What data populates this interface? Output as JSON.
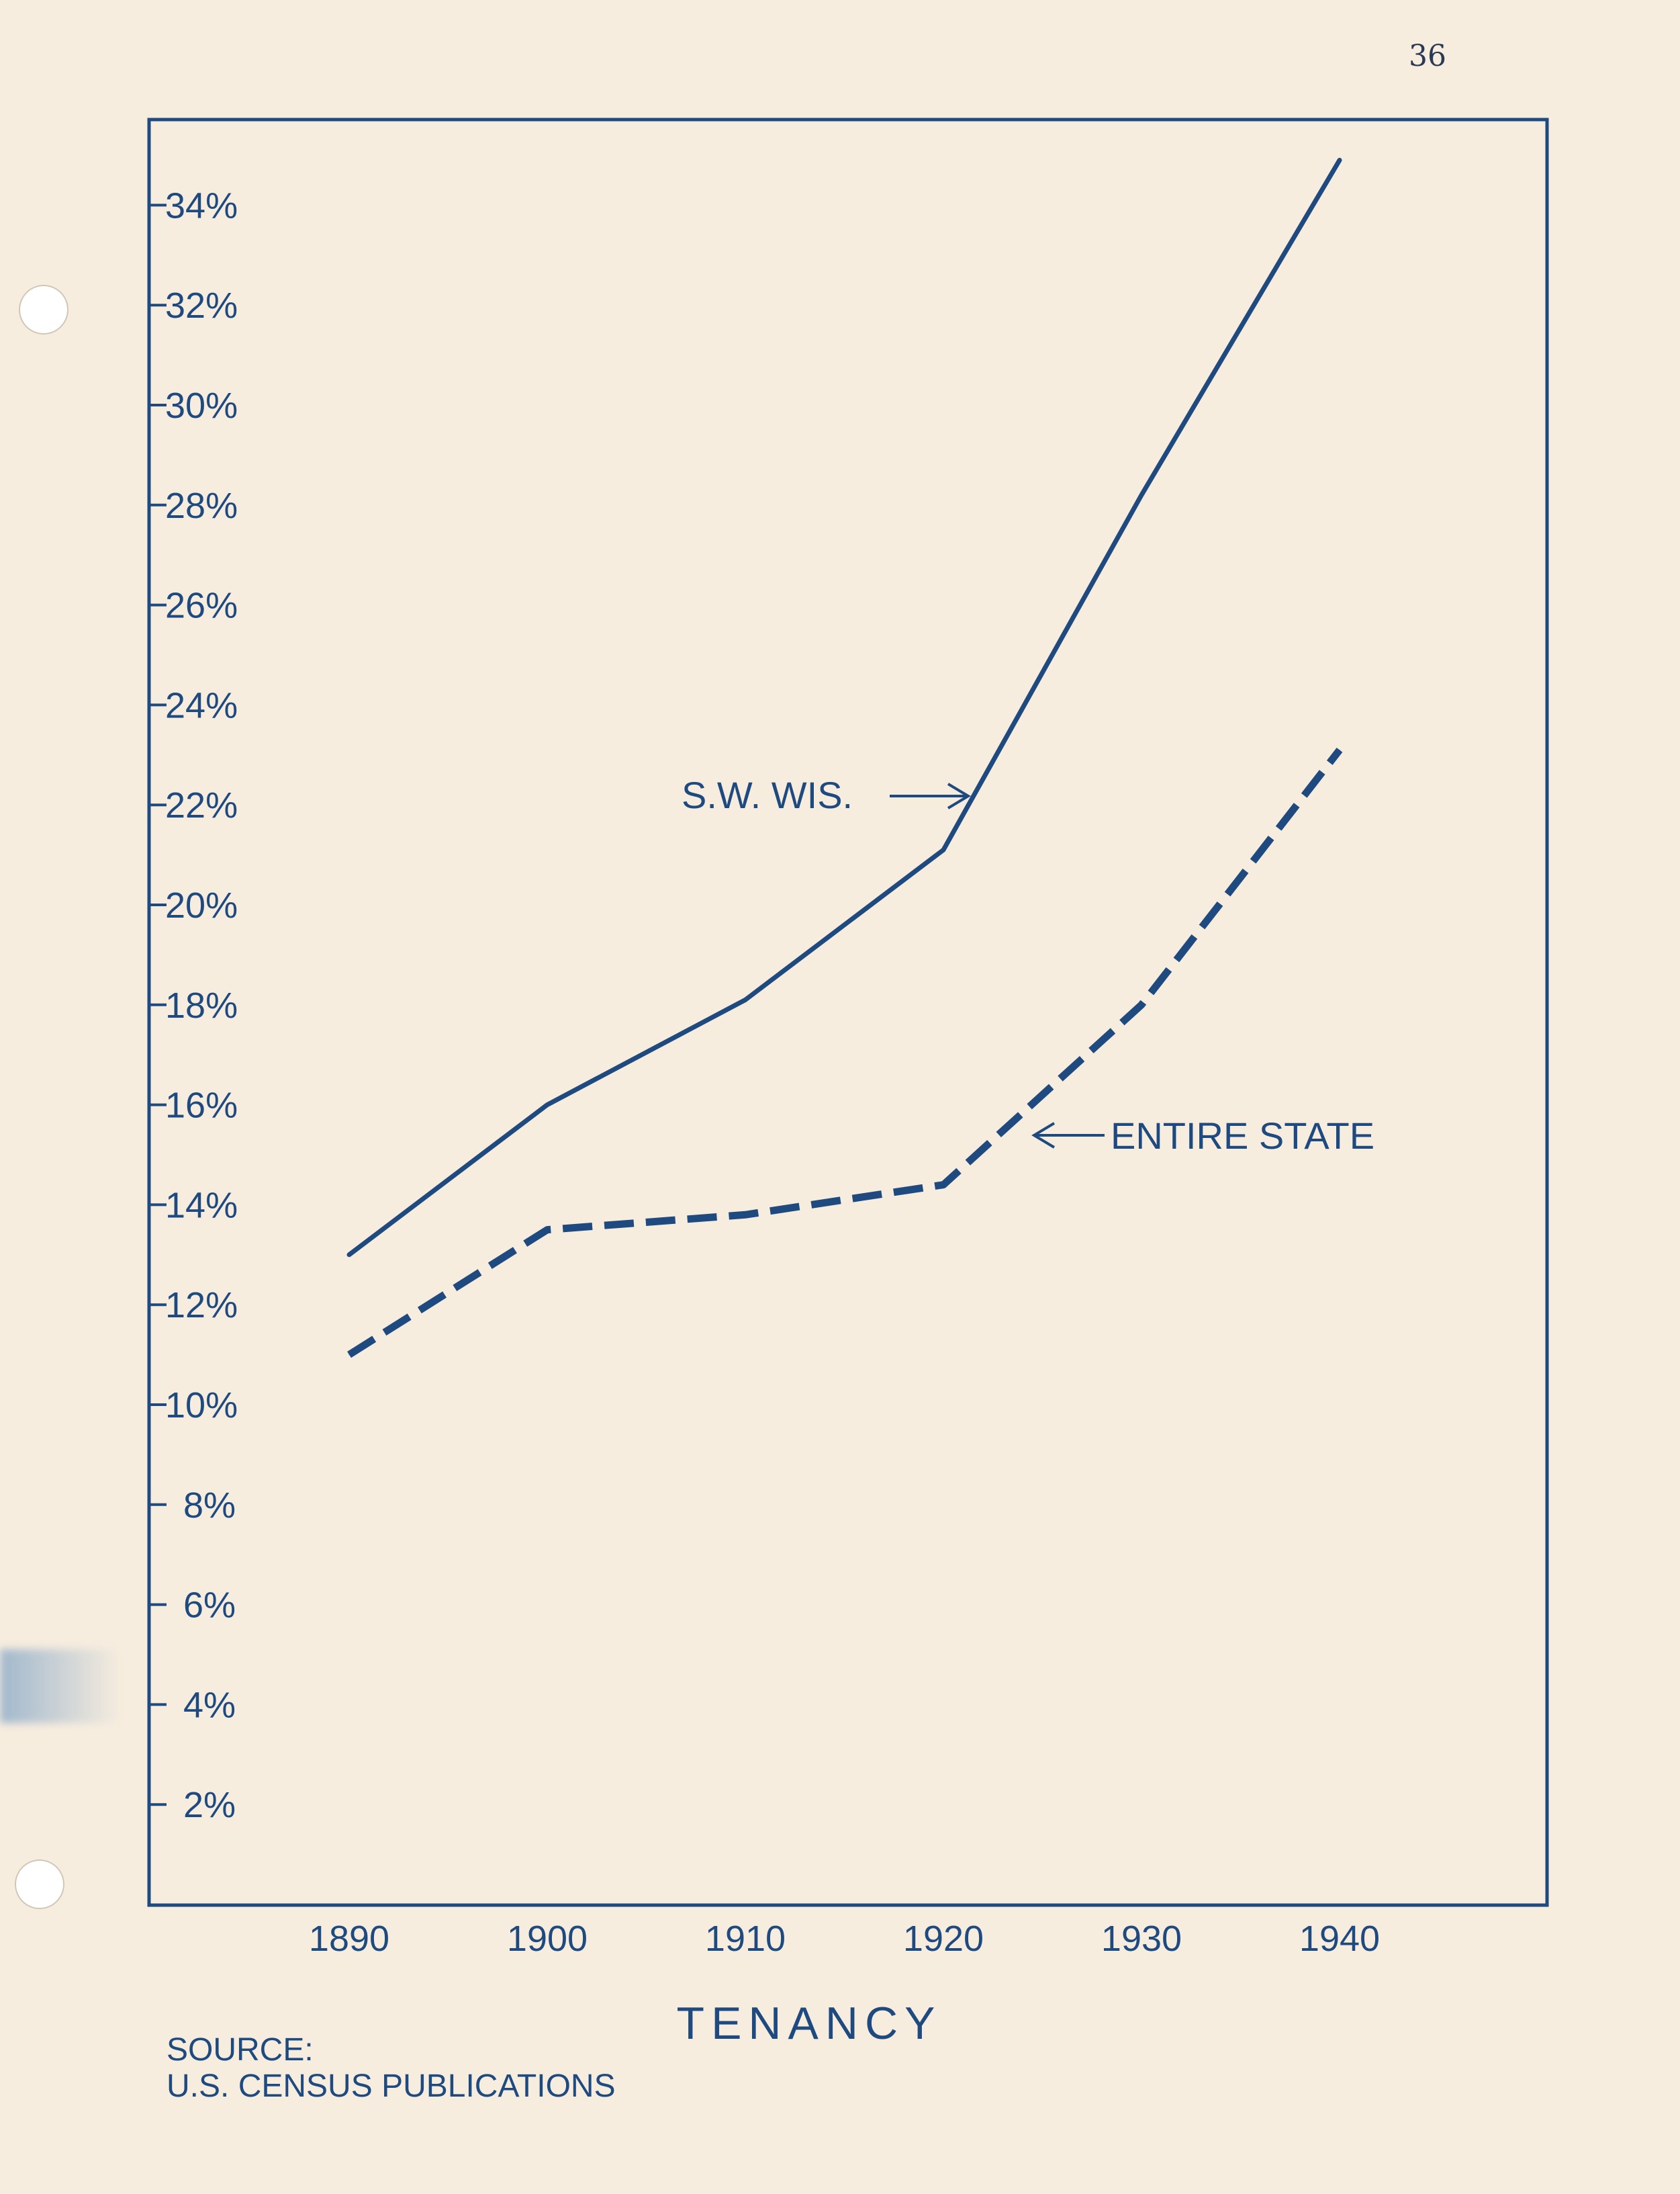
{
  "page_number": "36",
  "source": {
    "heading": "SOURCE:",
    "text": "U.S. CENSUS PUBLICATIONS"
  },
  "colors": {
    "ink": "#1f4a80",
    "paper": "#f7eddf"
  },
  "chart_data": {
    "type": "line",
    "title": "",
    "xlabel": "TENANCY",
    "ylabel": "",
    "x": [
      1890,
      1900,
      1910,
      1920,
      1930,
      1940
    ],
    "x_tick_labels": [
      "1890",
      "1900",
      "1910",
      "1920",
      "1930",
      "1940"
    ],
    "xlim": [
      1880,
      1950
    ],
    "ylim": [
      0,
      36
    ],
    "y_ticks": [
      2,
      4,
      6,
      8,
      10,
      12,
      14,
      16,
      18,
      20,
      22,
      24,
      26,
      28,
      30,
      32,
      34
    ],
    "y_tick_labels": [
      "2%",
      "4%",
      "6%",
      "8%",
      "10%",
      "12%",
      "14%",
      "16%",
      "18%",
      "20%",
      "22%",
      "24%",
      "26%",
      "28%",
      "30%",
      "32%",
      "34%"
    ],
    "grid": false,
    "legend": "none",
    "series": [
      {
        "name": "S.W. WIS.",
        "style": "solid",
        "values": [
          13.0,
          16.0,
          18.1,
          21.1,
          28.2,
          34.9
        ]
      },
      {
        "name": "ENTIRE STATE",
        "style": "dashed",
        "values": [
          11.0,
          13.5,
          13.8,
          14.4,
          18.0,
          23.1
        ]
      }
    ],
    "annotations": [
      {
        "text": "S.W. WIS.→",
        "points_to_series": 0
      },
      {
        "text": "←ENTIRE STATE",
        "points_to_series": 1
      }
    ]
  }
}
